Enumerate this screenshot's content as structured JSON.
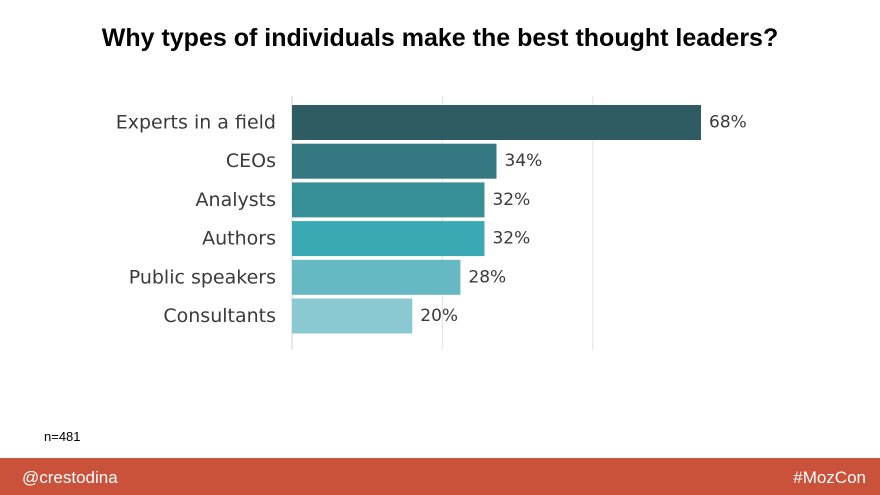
{
  "slide": {
    "title": "Why types of individuals make the best thought leaders?"
  },
  "chart_data": {
    "type": "bar",
    "orientation": "horizontal",
    "title": "Why types of individuals make the best thought leaders?",
    "xlabel": "",
    "ylabel": "",
    "categories": [
      "Experts in a field",
      "CEOs",
      "Analysts",
      "Authors",
      "Public speakers",
      "Consultants"
    ],
    "values": [
      68,
      34,
      32,
      32,
      28,
      20
    ],
    "value_labels": [
      "68%",
      "34%",
      "32%",
      "32%",
      "28%",
      "20%"
    ],
    "unit": "%",
    "xlim": [
      0,
      100
    ],
    "gridlines": [
      0,
      25,
      50
    ],
    "grid": true,
    "legend": "none",
    "colors": [
      "#2f5c62",
      "#347982",
      "#378f98",
      "#3ba9b4",
      "#66b9c3",
      "#8ac9d1"
    ]
  },
  "note": {
    "sample": "n=481"
  },
  "footer": {
    "left": "@crestodina",
    "right": "#MozCon",
    "color": "#cb523a"
  }
}
